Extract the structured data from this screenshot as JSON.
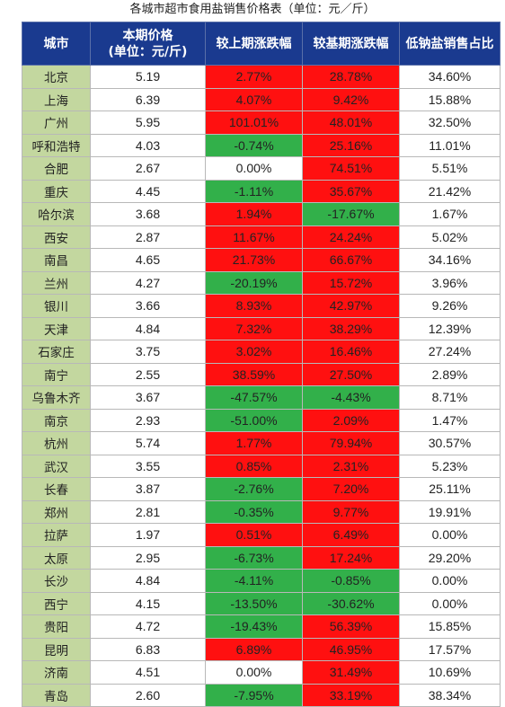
{
  "title": "各城市超市食用盐销售价格表（单位：元／斤）",
  "headers": {
    "city": "城市",
    "price_line1": "本期价格",
    "price_line2": "(单位：元/斤)",
    "mom": "较上期涨跌幅",
    "yoy": "较基期涨跌幅",
    "low_sodium": "低钠盐销售占比"
  },
  "colors": {
    "header_bg": "#1a3a8f",
    "city_bg": "#c3d79f",
    "up": "#ff1010",
    "down": "#32b04a"
  },
  "rows": [
    {
      "city": "北京",
      "price": "5.19",
      "mom": "2.77%",
      "yoy": "28.78%",
      "low": "34.60%"
    },
    {
      "city": "上海",
      "price": "6.39",
      "mom": "4.07%",
      "yoy": "9.42%",
      "low": "15.88%"
    },
    {
      "city": "广州",
      "price": "5.95",
      "mom": "101.01%",
      "yoy": "48.01%",
      "low": "32.50%"
    },
    {
      "city": "呼和浩特",
      "price": "4.03",
      "mom": "-0.74%",
      "yoy": "25.16%",
      "low": "11.01%"
    },
    {
      "city": "合肥",
      "price": "2.67",
      "mom": "0.00%",
      "yoy": "74.51%",
      "low": "5.51%"
    },
    {
      "city": "重庆",
      "price": "4.45",
      "mom": "-1.11%",
      "yoy": "35.67%",
      "low": "21.42%"
    },
    {
      "city": "哈尔滨",
      "price": "3.68",
      "mom": "1.94%",
      "yoy": "-17.67%",
      "low": "1.67%"
    },
    {
      "city": "西安",
      "price": "2.87",
      "mom": "11.67%",
      "yoy": "24.24%",
      "low": "5.02%"
    },
    {
      "city": "南昌",
      "price": "4.65",
      "mom": "21.73%",
      "yoy": "66.67%",
      "low": "34.16%"
    },
    {
      "city": "兰州",
      "price": "4.27",
      "mom": "-20.19%",
      "yoy": "15.72%",
      "low": "3.96%"
    },
    {
      "city": "银川",
      "price": "3.66",
      "mom": "8.93%",
      "yoy": "42.97%",
      "low": "9.26%"
    },
    {
      "city": "天津",
      "price": "4.84",
      "mom": "7.32%",
      "yoy": "38.29%",
      "low": "12.39%"
    },
    {
      "city": "石家庄",
      "price": "3.75",
      "mom": "3.02%",
      "yoy": "16.46%",
      "low": "27.24%"
    },
    {
      "city": "南宁",
      "price": "2.55",
      "mom": "38.59%",
      "yoy": "27.50%",
      "low": "2.89%"
    },
    {
      "city": "乌鲁木齐",
      "price": "3.67",
      "mom": "-47.57%",
      "yoy": "-4.43%",
      "low": "8.71%"
    },
    {
      "city": "南京",
      "price": "2.93",
      "mom": "-51.00%",
      "yoy": "2.09%",
      "low": "1.47%"
    },
    {
      "city": "杭州",
      "price": "5.74",
      "mom": "1.77%",
      "yoy": "79.94%",
      "low": "30.57%"
    },
    {
      "city": "武汉",
      "price": "3.55",
      "mom": "0.85%",
      "yoy": "2.31%",
      "low": "5.23%"
    },
    {
      "city": "长春",
      "price": "3.87",
      "mom": "-2.76%",
      "yoy": "7.20%",
      "low": "25.11%"
    },
    {
      "city": "郑州",
      "price": "2.81",
      "mom": "-0.35%",
      "yoy": "9.77%",
      "low": "19.91%"
    },
    {
      "city": "拉萨",
      "price": "1.97",
      "mom": "0.51%",
      "yoy": "6.49%",
      "low": "0.00%"
    },
    {
      "city": "太原",
      "price": "2.95",
      "mom": "-6.73%",
      "yoy": "17.24%",
      "low": "29.20%"
    },
    {
      "city": "长沙",
      "price": "4.84",
      "mom": "-4.11%",
      "yoy": "-0.85%",
      "low": "0.00%"
    },
    {
      "city": "西宁",
      "price": "4.15",
      "mom": "-13.50%",
      "yoy": "-30.62%",
      "low": "0.00%"
    },
    {
      "city": "贵阳",
      "price": "4.72",
      "mom": "-19.43%",
      "yoy": "56.39%",
      "low": "15.85%"
    },
    {
      "city": "昆明",
      "price": "6.83",
      "mom": "6.89%",
      "yoy": "46.95%",
      "low": "17.57%"
    },
    {
      "city": "济南",
      "price": "4.51",
      "mom": "0.00%",
      "yoy": "31.49%",
      "low": "10.69%"
    },
    {
      "city": "青岛",
      "price": "2.60",
      "mom": "-7.95%",
      "yoy": "33.19%",
      "low": "38.34%"
    }
  ]
}
